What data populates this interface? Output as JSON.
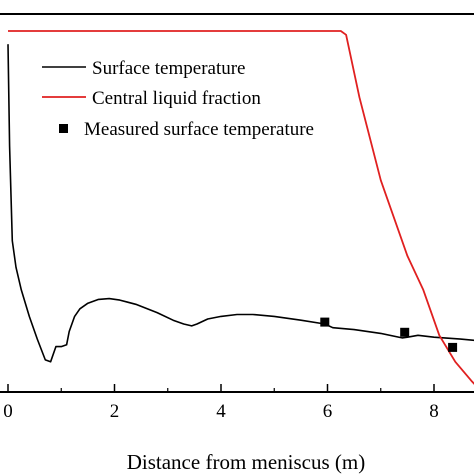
{
  "chart_data": {
    "type": "line",
    "xlabel": "Distance from meniscus (m)",
    "ylabel": "",
    "xlim": [
      -0.1,
      8.9
    ],
    "ylim": [
      0,
      1
    ],
    "xticks": [
      0,
      2,
      4,
      6,
      8
    ],
    "grid": false,
    "legend_placement": "top-left",
    "series": [
      {
        "name": "Surface temperature",
        "kind": "line",
        "color": "#000000",
        "x": [
          0.0,
          0.03,
          0.08,
          0.15,
          0.25,
          0.4,
          0.55,
          0.7,
          0.8,
          0.9,
          1.0,
          1.1,
          1.15,
          1.25,
          1.35,
          1.5,
          1.7,
          1.9,
          2.1,
          2.4,
          2.8,
          3.1,
          3.3,
          3.45,
          3.55,
          3.75,
          4.0,
          4.3,
          4.6,
          5.0,
          5.5,
          5.95,
          6.1,
          6.5,
          7.0,
          7.4,
          7.5,
          7.7,
          8.0,
          8.5,
          8.9
        ],
        "y": [
          0.92,
          0.65,
          0.4,
          0.33,
          0.27,
          0.2,
          0.14,
          0.085,
          0.08,
          0.12,
          0.12,
          0.125,
          0.16,
          0.2,
          0.22,
          0.235,
          0.245,
          0.247,
          0.243,
          0.232,
          0.21,
          0.19,
          0.18,
          0.175,
          0.18,
          0.193,
          0.2,
          0.205,
          0.205,
          0.2,
          0.19,
          0.18,
          0.17,
          0.165,
          0.155,
          0.143,
          0.145,
          0.15,
          0.145,
          0.14,
          0.135
        ]
      },
      {
        "name": "Central liquid fraction",
        "kind": "line",
        "color": "#e02020",
        "x": [
          0.0,
          6.0,
          6.25,
          6.35,
          6.6,
          7.0,
          7.5,
          7.8,
          8.1,
          8.4,
          8.7,
          8.9
        ],
        "y": [
          0.955,
          0.955,
          0.955,
          0.945,
          0.78,
          0.56,
          0.36,
          0.27,
          0.15,
          0.08,
          0.03,
          0.0
        ]
      },
      {
        "name": "Measured surface temperature",
        "kind": "scatter",
        "marker": "square",
        "color": "#000000",
        "x": [
          5.95,
          7.45,
          8.35
        ],
        "y": [
          0.185,
          0.158,
          0.118
        ]
      }
    ]
  }
}
